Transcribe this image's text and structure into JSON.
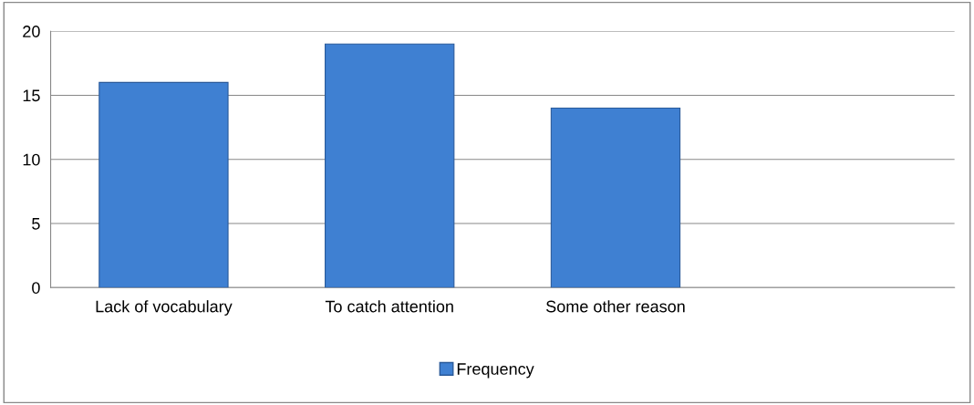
{
  "chart_data": {
    "type": "bar",
    "categories": [
      "Lack of vocabulary",
      "To catch attention",
      "Some other reason",
      null
    ],
    "series": [
      {
        "name": "Frequency",
        "color": "#3f80d2",
        "values": [
          16,
          19,
          14,
          null
        ]
      }
    ],
    "ylim": [
      0,
      20
    ],
    "yticks": [
      0,
      5,
      10,
      15,
      20
    ],
    "grid": "y",
    "legend": "bottom"
  }
}
